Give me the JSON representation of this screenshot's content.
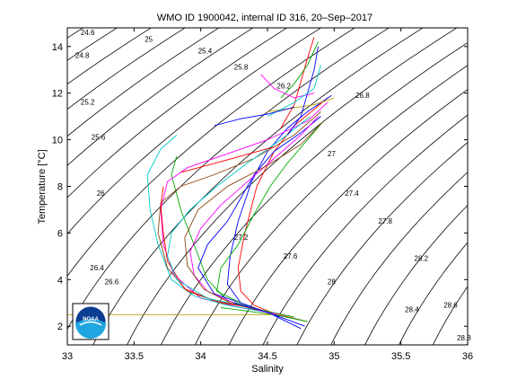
{
  "chart_data": {
    "type": "line",
    "title": "WMO ID 1900042, internal ID 316, 20–Sep–2017",
    "xlabel": "Salinity",
    "ylabel": "Temperature [°C]",
    "xlim": [
      33,
      36
    ],
    "ylim": [
      1.2,
      14.8
    ],
    "xticks": [
      33,
      33.5,
      34,
      34.5,
      35,
      35.5,
      36
    ],
    "xtick_labels": [
      "33",
      "33.5",
      "34",
      "34.5",
      "35",
      "35.5",
      "36"
    ],
    "yticks": [
      2,
      4,
      6,
      8,
      10,
      12,
      14
    ],
    "ytick_labels": [
      "2",
      "4",
      "6",
      "8",
      "10",
      "12",
      "14"
    ],
    "grid": false,
    "density_contours": [
      {
        "label": "24.6",
        "at": [
          33.1,
          14.5
        ]
      },
      {
        "label": "24.8",
        "at": [
          33.06,
          13.5
        ]
      },
      {
        "label": "25",
        "at": [
          33.58,
          14.2
        ]
      },
      {
        "label": "25.2",
        "at": [
          33.1,
          11.5
        ]
      },
      {
        "label": "25.4",
        "at": [
          33.98,
          13.7
        ]
      },
      {
        "label": "25.6",
        "at": [
          33.18,
          10.0
        ]
      },
      {
        "label": "25.8",
        "at": [
          34.25,
          13.0
        ]
      },
      {
        "label": "26",
        "at": [
          33.22,
          7.6
        ]
      },
      {
        "label": "26.2",
        "at": [
          34.57,
          12.2
        ]
      },
      {
        "label": "26.4",
        "at": [
          33.17,
          4.4
        ]
      },
      {
        "label": "26.6",
        "at": [
          33.28,
          3.8
        ]
      },
      {
        "label": "26.8",
        "at": [
          35.16,
          11.8
        ]
      },
      {
        "label": "27",
        "at": [
          34.95,
          9.3
        ]
      },
      {
        "label": "27.2",
        "at": [
          34.25,
          5.7
        ]
      },
      {
        "label": "27.4",
        "at": [
          35.08,
          7.6
        ]
      },
      {
        "label": "27.6",
        "at": [
          34.62,
          4.9
        ]
      },
      {
        "label": "27.8",
        "at": [
          35.33,
          6.4
        ]
      },
      {
        "label": "28",
        "at": [
          34.95,
          3.8
        ]
      },
      {
        "label": "28.2",
        "at": [
          35.6,
          4.8
        ]
      },
      {
        "label": "28.4",
        "at": [
          35.53,
          2.6
        ]
      },
      {
        "label": "28.6",
        "at": [
          35.82,
          2.8
        ]
      },
      {
        "label": "28.8",
        "at": [
          35.92,
          1.4
        ]
      }
    ],
    "series": [
      {
        "color": "#ff0000",
        "points": [
          [
            34.8,
            2.2
          ],
          [
            34.55,
            2.55
          ],
          [
            34.4,
            2.9
          ],
          [
            34.3,
            3.5
          ],
          [
            34.28,
            4.5
          ],
          [
            34.33,
            6.0
          ],
          [
            34.42,
            8.0
          ],
          [
            34.55,
            9.5
          ],
          [
            34.7,
            10.6
          ],
          [
            34.85,
            11.3
          ],
          [
            34.95,
            11.8
          ]
        ]
      },
      {
        "color": "#0000ff",
        "points": [
          [
            34.75,
            1.9
          ],
          [
            34.5,
            2.6
          ],
          [
            34.3,
            3.0
          ],
          [
            34.2,
            3.8
          ],
          [
            34.22,
            5.0
          ],
          [
            34.28,
            6.5
          ],
          [
            34.38,
            8.2
          ],
          [
            34.5,
            9.5
          ],
          [
            34.65,
            10.5
          ],
          [
            34.8,
            11.2
          ],
          [
            34.98,
            11.9
          ]
        ]
      },
      {
        "color": "#00aa00",
        "points": [
          [
            34.7,
            2.4
          ],
          [
            34.45,
            2.7
          ],
          [
            34.2,
            3.1
          ],
          [
            34.05,
            4.0
          ],
          [
            33.95,
            5.5
          ],
          [
            33.85,
            7.0
          ],
          [
            33.78,
            8.5
          ],
          [
            33.82,
            9.3
          ]
        ]
      },
      {
        "color": "#ff00ff",
        "points": [
          [
            34.6,
            2.5
          ],
          [
            34.3,
            2.8
          ],
          [
            34.0,
            3.2
          ],
          [
            33.8,
            4.2
          ],
          [
            33.72,
            5.5
          ],
          [
            33.7,
            7.0
          ],
          [
            33.75,
            8.2
          ],
          [
            33.9,
            8.8
          ],
          [
            34.2,
            9.4
          ],
          [
            34.5,
            10.0
          ],
          [
            34.8,
            10.8
          ],
          [
            34.95,
            11.6
          ]
        ]
      },
      {
        "color": "#00c8c8",
        "points": [
          [
            34.5,
            2.6
          ],
          [
            34.2,
            2.9
          ],
          [
            33.95,
            3.3
          ],
          [
            33.78,
            4.0
          ],
          [
            33.68,
            5.5
          ],
          [
            33.62,
            7.0
          ],
          [
            33.6,
            8.5
          ],
          [
            33.7,
            9.6
          ],
          [
            33.82,
            10.2
          ]
        ]
      },
      {
        "color": "#b8a000",
        "points": [
          [
            33.0,
            2.5
          ],
          [
            34.6,
            2.5
          ]
        ]
      },
      {
        "color": "#b8a000",
        "points": [
          [
            34.5,
            11.2
          ],
          [
            34.85,
            11.5
          ],
          [
            35.0,
            11.8
          ]
        ]
      },
      {
        "color": "#8b4513",
        "points": [
          [
            34.4,
            2.8
          ],
          [
            34.15,
            3.0
          ],
          [
            33.9,
            3.5
          ],
          [
            33.75,
            4.5
          ],
          [
            33.68,
            6.0
          ],
          [
            33.7,
            7.3
          ],
          [
            33.85,
            8.0
          ],
          [
            34.1,
            8.5
          ],
          [
            34.4,
            9.2
          ],
          [
            34.7,
            10.2
          ],
          [
            34.9,
            11.2
          ]
        ]
      },
      {
        "color": "#ff0000",
        "points": [
          [
            34.45,
            2.7
          ],
          [
            34.1,
            3.1
          ],
          [
            33.88,
            3.6
          ],
          [
            33.75,
            4.8
          ],
          [
            33.72,
            6.0
          ],
          [
            33.7,
            7.2
          ],
          [
            33.72,
            8.0
          ]
        ]
      },
      {
        "color": "#0000ff",
        "points": [
          [
            34.35,
            2.9
          ],
          [
            34.1,
            3.4
          ],
          [
            33.98,
            4.5
          ],
          [
            34.05,
            5.5
          ],
          [
            34.2,
            6.5
          ],
          [
            34.3,
            7.5
          ],
          [
            34.4,
            8.5
          ],
          [
            34.55,
            9.5
          ],
          [
            34.75,
            10.3
          ],
          [
            34.9,
            11.0
          ]
        ]
      },
      {
        "color": "#00aa00",
        "points": [
          [
            34.3,
            3.0
          ],
          [
            34.12,
            3.5
          ],
          [
            34.15,
            4.5
          ],
          [
            34.28,
            5.5
          ],
          [
            34.4,
            6.8
          ],
          [
            34.52,
            8.0
          ],
          [
            34.65,
            9.0
          ],
          [
            34.8,
            10.0
          ],
          [
            34.92,
            10.8
          ]
        ]
      },
      {
        "color": "#ff00ff",
        "points": [
          [
            34.55,
            2.5
          ],
          [
            34.25,
            3.0
          ],
          [
            34.05,
            3.5
          ],
          [
            33.95,
            4.2
          ],
          [
            33.92,
            5.2
          ],
          [
            34.0,
            6.2
          ],
          [
            34.15,
            7.2
          ],
          [
            34.35,
            8.2
          ],
          [
            34.55,
            9.2
          ],
          [
            34.75,
            10.2
          ],
          [
            34.88,
            11.0
          ]
        ]
      },
      {
        "color": "#00c8c8",
        "points": [
          [
            34.38,
            2.8
          ],
          [
            34.05,
            3.2
          ],
          [
            33.82,
            4.0
          ],
          [
            33.75,
            5.0
          ],
          [
            33.78,
            6.0
          ],
          [
            33.92,
            7.0
          ],
          [
            34.12,
            8.0
          ],
          [
            34.35,
            9.0
          ],
          [
            34.6,
            10.0
          ],
          [
            34.82,
            11.0
          ]
        ]
      },
      {
        "color": "#8b4513",
        "points": [
          [
            34.42,
            2.7
          ],
          [
            34.22,
            3.0
          ],
          [
            34.02,
            3.6
          ],
          [
            33.9,
            4.6
          ],
          [
            33.88,
            5.8
          ],
          [
            33.98,
            7.0
          ],
          [
            34.2,
            8.0
          ],
          [
            34.5,
            8.9
          ],
          [
            34.75,
            9.8
          ],
          [
            34.92,
            10.8
          ]
        ]
      },
      {
        "color": "#ff0000",
        "points": [
          [
            34.6,
            10.5
          ],
          [
            34.7,
            11.5
          ],
          [
            34.75,
            12.5
          ],
          [
            34.8,
            13.5
          ],
          [
            34.85,
            14.4
          ]
        ]
      },
      {
        "color": "#0000ff",
        "points": [
          [
            34.65,
            10.2
          ],
          [
            34.75,
            11.0
          ],
          [
            34.8,
            12.0
          ],
          [
            34.85,
            13.0
          ],
          [
            34.88,
            14.0
          ]
        ]
      },
      {
        "color": "#00aa00",
        "points": [
          [
            34.6,
            11.8
          ],
          [
            34.7,
            12.4
          ],
          [
            34.8,
            13.2
          ],
          [
            34.88,
            14.2
          ]
        ]
      },
      {
        "color": "#ff00ff",
        "points": [
          [
            34.45,
            12.8
          ],
          [
            34.55,
            12.2
          ],
          [
            34.7,
            11.8
          ],
          [
            34.85,
            12.0
          ]
        ]
      },
      {
        "color": "#00c8c8",
        "points": [
          [
            34.5,
            11.0
          ],
          [
            34.7,
            11.6
          ],
          [
            34.85,
            12.2
          ],
          [
            34.9,
            13.2
          ]
        ]
      },
      {
        "color": "#0000ff",
        "points": [
          [
            34.1,
            10.6
          ],
          [
            34.3,
            10.9
          ],
          [
            34.5,
            11.1
          ],
          [
            34.7,
            11.4
          ]
        ]
      },
      {
        "color": "#ff0000",
        "points": [
          [
            33.85,
            8.6
          ],
          [
            34.05,
            8.9
          ],
          [
            34.3,
            9.3
          ],
          [
            34.55,
            9.7
          ]
        ]
      },
      {
        "color": "#00aa00",
        "points": [
          [
            34.15,
            2.8
          ],
          [
            34.55,
            2.5
          ],
          [
            34.8,
            2.2
          ]
        ]
      },
      {
        "color": "#0000ff",
        "points": [
          [
            34.25,
            3.0
          ],
          [
            34.5,
            2.6
          ],
          [
            34.78,
            2.0
          ]
        ]
      }
    ]
  },
  "logo": {
    "text": "NOAA"
  }
}
